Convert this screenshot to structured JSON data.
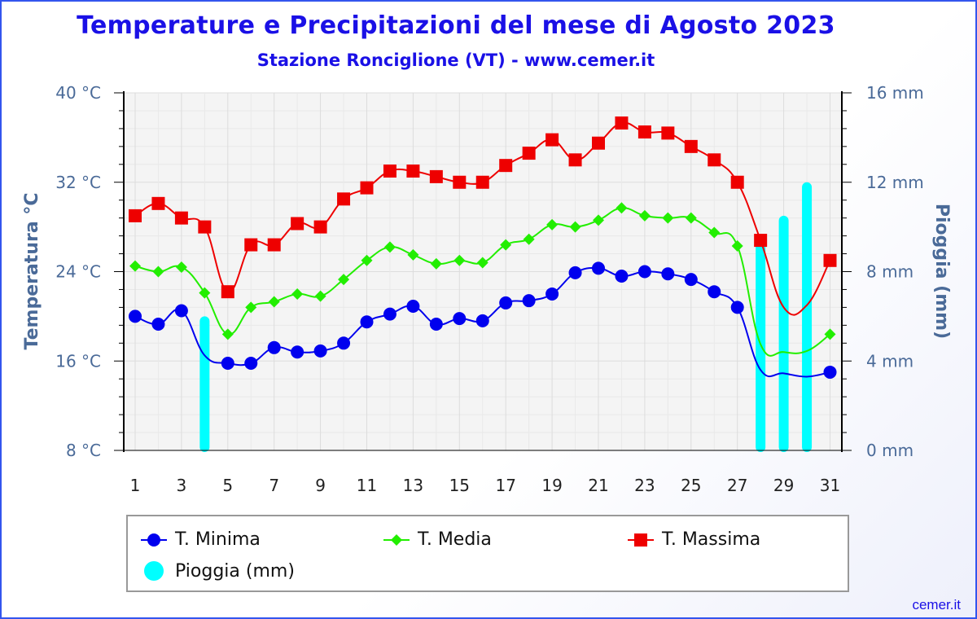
{
  "title": "Temperature e Precipitazioni del mese di Agosto 2023",
  "subtitle": "Stazione Ronciglione (VT) - www.cemer.it",
  "footer": "cemer.it",
  "chart_data": {
    "type": "line",
    "title": "Temperature e Precipitazioni del mese di Agosto 2023",
    "subtitle": "Stazione Ronciglione (VT) - www.cemer.it",
    "ylabel": "Temperatura °C",
    "y2label": "Pioggia (mm)",
    "ylim": [
      8,
      40
    ],
    "y2lim": [
      0,
      16
    ],
    "y_ticks": [
      "8 °C",
      "16 °C",
      "24 °C",
      "32 °C",
      "40 °C"
    ],
    "y2_ticks": [
      "0 mm",
      "4 mm",
      "8 mm",
      "12 mm",
      "16 mm"
    ],
    "x_ticks": [
      1,
      3,
      5,
      7,
      9,
      11,
      13,
      15,
      17,
      19,
      21,
      23,
      25,
      27,
      29,
      31
    ],
    "x": [
      1,
      2,
      3,
      4,
      5,
      6,
      7,
      8,
      9,
      10,
      11,
      12,
      13,
      14,
      15,
      16,
      17,
      18,
      19,
      20,
      21,
      22,
      23,
      24,
      25,
      26,
      27,
      28,
      29,
      30,
      31
    ],
    "grid": true,
    "legend_position": "bottom",
    "series": [
      {
        "name": "T. Minima",
        "color": "#0000ee",
        "marker": "circle",
        "values": [
          20.0,
          19.3,
          20.5,
          16.5,
          15.8,
          15.8,
          17.2,
          16.8,
          16.9,
          17.6,
          19.5,
          20.2,
          20.9,
          19.3,
          19.8,
          19.6,
          21.2,
          21.4,
          22.0,
          23.9,
          24.3,
          23.6,
          24.0,
          23.8,
          23.3,
          22.2,
          20.8,
          15.2,
          14.9,
          14.6,
          15.0
        ],
        "markers": [
          true,
          true,
          true,
          false,
          true,
          true,
          true,
          true,
          true,
          true,
          true,
          true,
          true,
          true,
          true,
          true,
          true,
          true,
          true,
          true,
          true,
          true,
          true,
          true,
          true,
          true,
          true,
          false,
          false,
          false,
          true
        ]
      },
      {
        "name": "T. Media",
        "color": "#22ee00",
        "marker": "diamond",
        "values": [
          24.5,
          24.0,
          24.4,
          22.1,
          18.4,
          20.8,
          21.3,
          22.0,
          21.8,
          23.3,
          25.0,
          26.2,
          25.5,
          24.7,
          25.0,
          24.8,
          26.4,
          26.9,
          28.2,
          28.0,
          28.6,
          29.7,
          29.0,
          28.8,
          28.8,
          27.5,
          26.3,
          17.5,
          16.8,
          16.9,
          18.4
        ],
        "markers": [
          true,
          true,
          true,
          true,
          true,
          true,
          true,
          true,
          true,
          true,
          true,
          true,
          true,
          true,
          true,
          true,
          true,
          true,
          true,
          true,
          true,
          true,
          true,
          true,
          true,
          true,
          true,
          false,
          false,
          false,
          true
        ]
      },
      {
        "name": "T. Massima",
        "color": "#ee0000",
        "marker": "square",
        "values": [
          29.0,
          30.1,
          28.8,
          28.0,
          22.2,
          26.4,
          26.4,
          28.3,
          28.0,
          30.5,
          31.5,
          33.0,
          33.0,
          32.5,
          32.0,
          32.0,
          33.5,
          34.6,
          35.8,
          34.0,
          35.5,
          37.3,
          36.5,
          36.4,
          35.2,
          34.0,
          32.0,
          26.8,
          20.8,
          21.0,
          25.0
        ],
        "markers": [
          true,
          true,
          true,
          true,
          true,
          true,
          true,
          true,
          true,
          true,
          true,
          true,
          true,
          true,
          true,
          true,
          true,
          true,
          true,
          true,
          true,
          true,
          true,
          true,
          true,
          true,
          true,
          true,
          false,
          false,
          true
        ]
      },
      {
        "name": "Pioggia (mm)",
        "color": "#00ffff",
        "type": "bar",
        "axis": "right",
        "values": [
          0,
          0,
          0,
          6.0,
          0,
          0,
          0,
          0,
          0,
          0,
          0,
          0,
          0,
          0,
          0,
          0,
          0,
          0,
          0,
          0,
          0,
          0,
          0,
          0,
          0,
          0,
          0,
          9.5,
          10.5,
          12.0,
          0
        ]
      }
    ]
  }
}
